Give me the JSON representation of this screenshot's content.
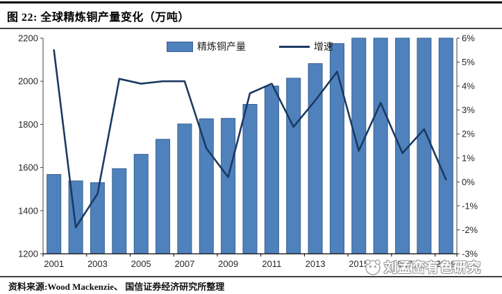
{
  "header": {
    "title": "图 22:  全球精炼铜产量变化（万吨）"
  },
  "chart_data": {
    "type": "bar+line",
    "title": "全球精炼铜产量变化（万吨）",
    "categories": [
      "2001",
      "2002",
      "2003",
      "2004",
      "2005",
      "2006",
      "2007",
      "2008",
      "2009",
      "2010",
      "2011",
      "2012",
      "2013",
      "2014",
      "2015",
      "2016",
      "2017",
      "2018",
      "2019"
    ],
    "series": [
      {
        "name": "精炼铜产量",
        "type": "bar",
        "axis": "left",
        "unit": "万吨",
        "color": "#4F81BD",
        "border_color": "#36618E",
        "values": [
          1568,
          1538,
          1530,
          1595,
          1661,
          1731,
          1802,
          1826,
          1828,
          1893,
          1978,
          2014,
          2082,
          2175,
          2200,
          2200,
          2200,
          2200,
          2200
        ]
      },
      {
        "name": "增速",
        "type": "line",
        "axis": "right",
        "unit": "%",
        "color": "#1B3A61",
        "values": [
          5.5,
          -1.9,
          -0.5,
          4.3,
          4.1,
          4.2,
          4.2,
          1.4,
          0.2,
          3.7,
          4.1,
          2.3,
          3.4,
          4.6,
          1.3,
          3.3,
          1.2,
          2.2,
          0.1
        ]
      }
    ],
    "left_axis": {
      "min": 1200,
      "max": 2200,
      "step": 200,
      "tick_labels": [
        "2200",
        "2000",
        "1800",
        "1600",
        "1400",
        "1200"
      ]
    },
    "right_axis": {
      "min": -3,
      "max": 6,
      "step": 1,
      "tick_labels": [
        "6%",
        "5%",
        "4%",
        "3%",
        "2%",
        "1%",
        "0%",
        "-1%",
        "-2%",
        "-3%"
      ]
    },
    "x_tick_labels": [
      "2001",
      "2003",
      "2005",
      "2007",
      "2009",
      "2011",
      "2013",
      "2015",
      "2017",
      "2019"
    ],
    "grid": false,
    "legend_position": "top-center"
  },
  "watermark": {
    "text": "刘孟峦有色研究"
  },
  "footer": {
    "source": "资料来源:Wood Mackenzie、 国信证券经济研究所整理"
  }
}
